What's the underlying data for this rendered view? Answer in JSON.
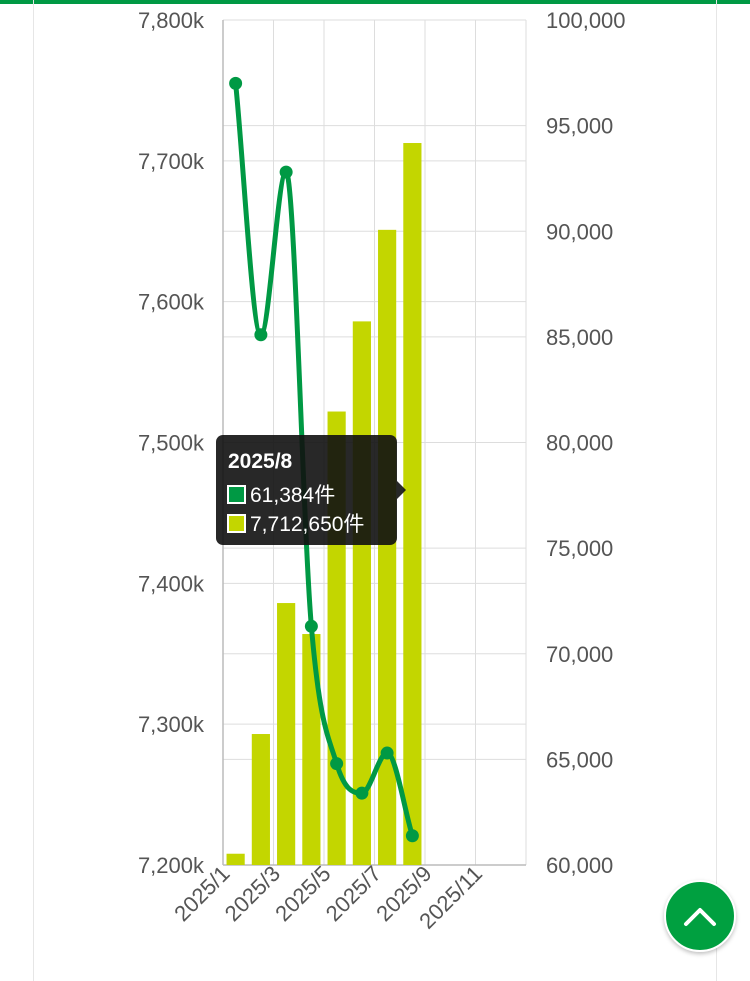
{
  "chart_data": {
    "type": "bar",
    "categories": [
      "2025/1",
      "2025/2",
      "2025/3",
      "2025/4",
      "2025/5",
      "2025/6",
      "2025/7",
      "2025/8",
      "2025/9",
      "2025/10",
      "2025/11",
      "2025/12"
    ],
    "x_tick_labels": [
      "2025/1",
      "2025/3",
      "2025/5",
      "2025/7",
      "2025/9",
      "2025/11"
    ],
    "series": [
      {
        "type": "bar",
        "axis": "left",
        "color": "#c3d600",
        "values": [
          7208000,
          7293000,
          7386000,
          7364000,
          7522000,
          7586000,
          7651000,
          7712650,
          null,
          null,
          null,
          null
        ]
      },
      {
        "type": "line",
        "axis": "right",
        "color": "#009944",
        "values": [
          97000,
          85100,
          92800,
          71300,
          64800,
          63400,
          65300,
          61384,
          null,
          null,
          null,
          null
        ]
      }
    ],
    "y_left": {
      "min": 7200000,
      "max": 7800000,
      "ticks": [
        "7,200k",
        "7,300k",
        "7,400k",
        "7,500k",
        "7,600k",
        "7,700k",
        "7,800k"
      ]
    },
    "y_right": {
      "min": 60000,
      "max": 100000,
      "ticks": [
        "60,000",
        "65,000",
        "70,000",
        "75,000",
        "80,000",
        "85,000",
        "90,000",
        "95,000",
        "100,000"
      ]
    },
    "grid": true,
    "legend": "none"
  },
  "tooltip": {
    "title": "2025/8",
    "rows": [
      {
        "color": "#009944",
        "text": "61,384件"
      },
      {
        "color": "#c3d600",
        "text": "7,712,650件"
      }
    ]
  },
  "scroll_top_button": {
    "icon": "chevron-up-icon",
    "color": "#00a040"
  }
}
